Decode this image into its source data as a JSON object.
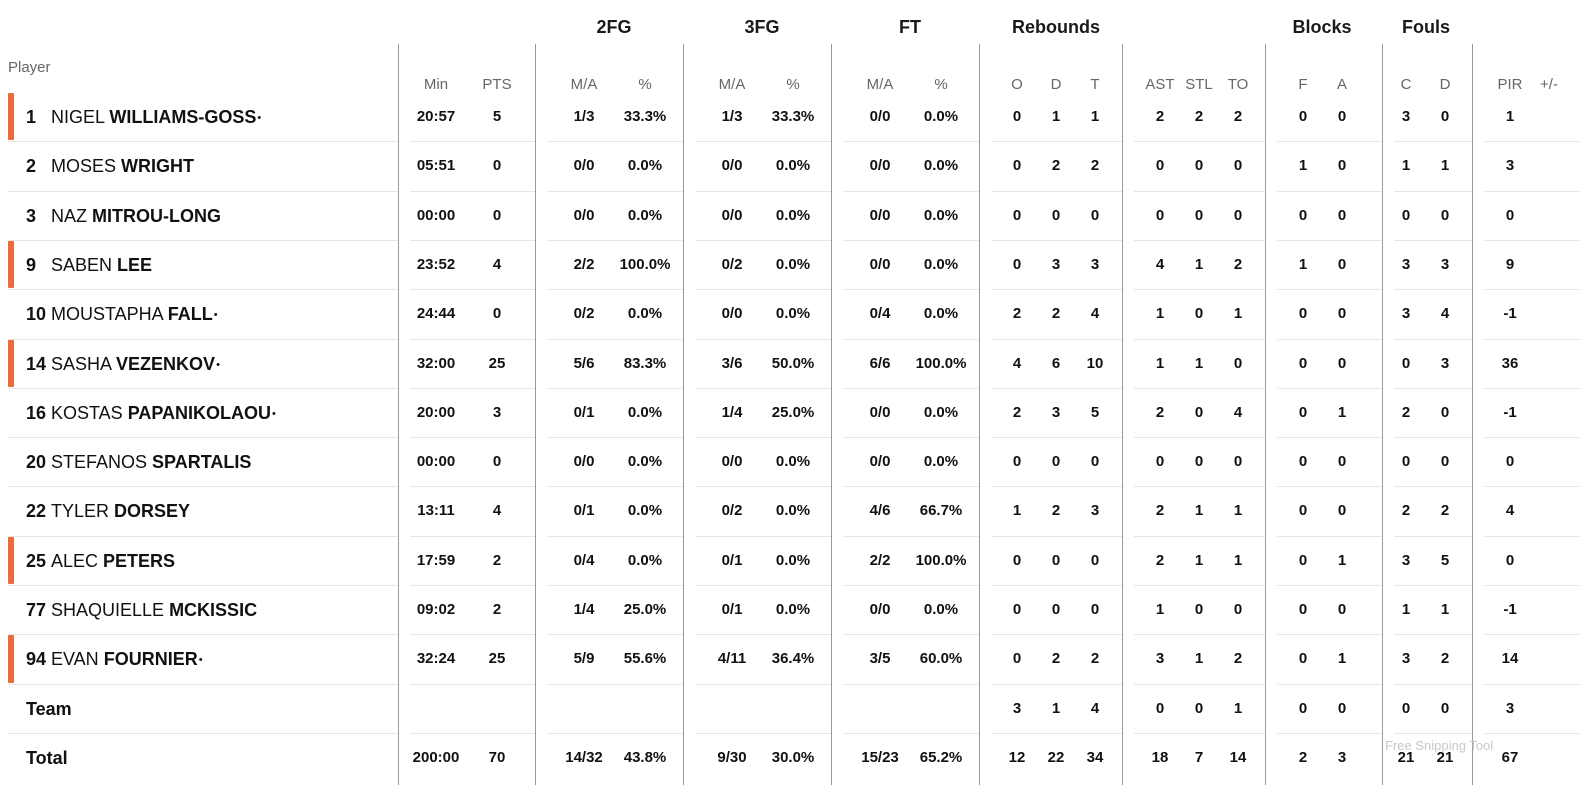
{
  "column_groups": [
    {
      "key": "g2fg",
      "label": "2FG"
    },
    {
      "key": "g3fg",
      "label": "3FG"
    },
    {
      "key": "gft",
      "label": "FT"
    },
    {
      "key": "greb",
      "label": "Rebounds"
    },
    {
      "key": "gblk",
      "label": "Blocks"
    },
    {
      "key": "gfoul",
      "label": "Fouls"
    }
  ],
  "player_header": "Player",
  "columns": [
    {
      "key": "min",
      "label": "Min"
    },
    {
      "key": "pts",
      "label": "PTS"
    },
    {
      "key": "fg2_ma",
      "label": "M/A"
    },
    {
      "key": "fg2_pct",
      "label": "%"
    },
    {
      "key": "fg3_ma",
      "label": "M/A"
    },
    {
      "key": "fg3_pct",
      "label": "%"
    },
    {
      "key": "ft_ma",
      "label": "M/A"
    },
    {
      "key": "ft_pct",
      "label": "%"
    },
    {
      "key": "reb_o",
      "label": "O"
    },
    {
      "key": "reb_d",
      "label": "D"
    },
    {
      "key": "reb_t",
      "label": "T"
    },
    {
      "key": "ast",
      "label": "AST"
    },
    {
      "key": "stl",
      "label": "STL"
    },
    {
      "key": "to",
      "label": "TO"
    },
    {
      "key": "blk_f",
      "label": "F"
    },
    {
      "key": "blk_a",
      "label": "A"
    },
    {
      "key": "foul_c",
      "label": "C"
    },
    {
      "key": "foul_d",
      "label": "D"
    },
    {
      "key": "pir",
      "label": "PIR"
    },
    {
      "key": "pm",
      "label": "+/-"
    }
  ],
  "players": [
    {
      "number": "1",
      "first": "NIGEL",
      "last": "WILLIAMS-GOSS",
      "marker": "•",
      "starter": true,
      "stats": [
        "20:57",
        "5",
        "1/3",
        "33.3%",
        "1/3",
        "33.3%",
        "0/0",
        "0.0%",
        "0",
        "1",
        "1",
        "2",
        "2",
        "2",
        "0",
        "0",
        "3",
        "0",
        "1",
        ""
      ]
    },
    {
      "number": "2",
      "first": "MOSES",
      "last": "WRIGHT",
      "marker": "",
      "starter": false,
      "stats": [
        "05:51",
        "0",
        "0/0",
        "0.0%",
        "0/0",
        "0.0%",
        "0/0",
        "0.0%",
        "0",
        "2",
        "2",
        "0",
        "0",
        "0",
        "1",
        "0",
        "1",
        "1",
        "3",
        ""
      ]
    },
    {
      "number": "3",
      "first": "NAZ",
      "last": "MITROU-LONG",
      "marker": "",
      "starter": false,
      "stats": [
        "00:00",
        "0",
        "0/0",
        "0.0%",
        "0/0",
        "0.0%",
        "0/0",
        "0.0%",
        "0",
        "0",
        "0",
        "0",
        "0",
        "0",
        "0",
        "0",
        "0",
        "0",
        "0",
        ""
      ]
    },
    {
      "number": "9",
      "first": "SABEN",
      "last": "LEE",
      "marker": "",
      "starter": true,
      "stats": [
        "23:52",
        "4",
        "2/2",
        "100.0%",
        "0/2",
        "0.0%",
        "0/0",
        "0.0%",
        "0",
        "3",
        "3",
        "4",
        "1",
        "2",
        "1",
        "0",
        "3",
        "3",
        "9",
        ""
      ]
    },
    {
      "number": "10",
      "first": "MOUSTAPHA",
      "last": "FALL",
      "marker": "•",
      "starter": false,
      "stats": [
        "24:44",
        "0",
        "0/2",
        "0.0%",
        "0/0",
        "0.0%",
        "0/4",
        "0.0%",
        "2",
        "2",
        "4",
        "1",
        "0",
        "1",
        "0",
        "0",
        "3",
        "4",
        "-1",
        ""
      ]
    },
    {
      "number": "14",
      "first": "SASHA",
      "last": "VEZENKOV",
      "marker": "•",
      "starter": true,
      "stats": [
        "32:00",
        "25",
        "5/6",
        "83.3%",
        "3/6",
        "50.0%",
        "6/6",
        "100.0%",
        "4",
        "6",
        "10",
        "1",
        "1",
        "0",
        "0",
        "0",
        "0",
        "3",
        "36",
        ""
      ]
    },
    {
      "number": "16",
      "first": "KOSTAS",
      "last": "PAPANIKOLAOU",
      "marker": "•",
      "starter": false,
      "stats": [
        "20:00",
        "3",
        "0/1",
        "0.0%",
        "1/4",
        "25.0%",
        "0/0",
        "0.0%",
        "2",
        "3",
        "5",
        "2",
        "0",
        "4",
        "0",
        "1",
        "2",
        "0",
        "-1",
        ""
      ]
    },
    {
      "number": "20",
      "first": "STEFANOS",
      "last": "SPARTALIS",
      "marker": "",
      "starter": false,
      "stats": [
        "00:00",
        "0",
        "0/0",
        "0.0%",
        "0/0",
        "0.0%",
        "0/0",
        "0.0%",
        "0",
        "0",
        "0",
        "0",
        "0",
        "0",
        "0",
        "0",
        "0",
        "0",
        "0",
        ""
      ]
    },
    {
      "number": "22",
      "first": "TYLER",
      "last": "DORSEY",
      "marker": "",
      "starter": false,
      "stats": [
        "13:11",
        "4",
        "0/1",
        "0.0%",
        "0/2",
        "0.0%",
        "4/6",
        "66.7%",
        "1",
        "2",
        "3",
        "2",
        "1",
        "1",
        "0",
        "0",
        "2",
        "2",
        "4",
        ""
      ]
    },
    {
      "number": "25",
      "first": "ALEC",
      "last": "PETERS",
      "marker": "",
      "starter": true,
      "stats": [
        "17:59",
        "2",
        "0/4",
        "0.0%",
        "0/1",
        "0.0%",
        "2/2",
        "100.0%",
        "0",
        "0",
        "0",
        "2",
        "1",
        "1",
        "0",
        "1",
        "3",
        "5",
        "0",
        ""
      ]
    },
    {
      "number": "77",
      "first": "SHAQUIELLE",
      "last": "MCKISSIC",
      "marker": "",
      "starter": false,
      "stats": [
        "09:02",
        "2",
        "1/4",
        "25.0%",
        "0/1",
        "0.0%",
        "0/0",
        "0.0%",
        "0",
        "0",
        "0",
        "1",
        "0",
        "0",
        "0",
        "0",
        "1",
        "1",
        "-1",
        ""
      ]
    },
    {
      "number": "94",
      "first": "EVAN",
      "last": "FOURNIER",
      "marker": "•",
      "starter": true,
      "stats": [
        "32:24",
        "25",
        "5/9",
        "55.6%",
        "4/11",
        "36.4%",
        "3/5",
        "60.0%",
        "0",
        "2",
        "2",
        "3",
        "1",
        "2",
        "0",
        "1",
        "3",
        "2",
        "14",
        ""
      ]
    }
  ],
  "team_row": {
    "label": "Team",
    "stats": [
      "",
      "",
      "",
      "",
      "",
      "",
      "",
      "",
      "3",
      "1",
      "4",
      "0",
      "0",
      "1",
      "0",
      "0",
      "0",
      "0",
      "3",
      ""
    ]
  },
  "total_row": {
    "label": "Total",
    "stats": [
      "200:00",
      "70",
      "14/32",
      "43.8%",
      "9/30",
      "30.0%",
      "15/23",
      "65.2%",
      "12",
      "22",
      "34",
      "18",
      "7",
      "14",
      "2",
      "3",
      "21",
      "21",
      "67",
      ""
    ]
  },
  "watermark": "Free Snipping Tool",
  "colors": {
    "starter_marker": "#ec6a3b",
    "divider": "#999999",
    "row_line": "#e6e6e6",
    "header_text": "#666666"
  }
}
